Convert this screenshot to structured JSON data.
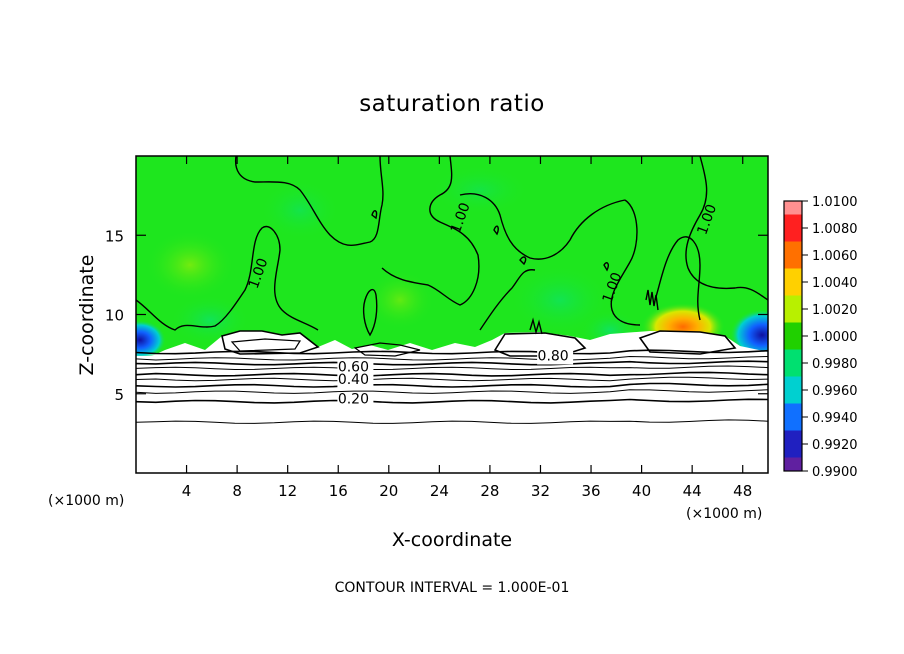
{
  "chart_data": {
    "type": "heatmap",
    "title": "saturation ratio",
    "xlabel": "X-coordinate",
    "ylabel": "Z-coordinate",
    "x_unit_label": "(×1000 m)",
    "x_unit_label_right": "(×1000 m)",
    "xlim": [
      0,
      50
    ],
    "ylim": [
      0,
      20
    ],
    "x_ticks": [
      4,
      8,
      12,
      16,
      20,
      24,
      28,
      32,
      36,
      40,
      44,
      48
    ],
    "y_ticks": [
      5,
      10,
      15
    ],
    "colorbar": {
      "labels": [
        "1.0100",
        "1.0080",
        "1.0060",
        "1.0040",
        "1.0020",
        "1.0000",
        "0.9980",
        "0.9960",
        "0.9940",
        "0.9920",
        "0.9900"
      ],
      "colors": [
        "#ff9090",
        "#ff2020",
        "#ff7000",
        "#ffd000",
        "#b8f000",
        "#20d000",
        "#00e070",
        "#00d0d0",
        "#1070ff",
        "#2020c0",
        "#6020a0"
      ]
    },
    "field": {
      "upper_value": 1.0,
      "upper_color": "#1ee61e",
      "local_maximum": {
        "x": 44,
        "z": 9.5,
        "value": 1.006
      },
      "local_minima": [
        {
          "x": 1,
          "z": 8.0,
          "value": 0.992
        },
        {
          "x": 49,
          "z": 8.5,
          "value": 0.992
        }
      ]
    },
    "contour_labels": [
      {
        "text": "1.00",
        "x": 10,
        "z": 12.5
      },
      {
        "text": "1.00",
        "x": 26,
        "z": 16.0
      },
      {
        "text": "1.00",
        "x": 38,
        "z": 11.6
      },
      {
        "text": "1.00",
        "x": 45.5,
        "z": 15.9
      },
      {
        "text": "0.80",
        "x": 33,
        "z": 7.1
      },
      {
        "text": "0.60",
        "x": 17.2,
        "z": 6.4
      },
      {
        "text": "0.40",
        "x": 17.2,
        "z": 5.6
      },
      {
        "text": "0.20",
        "x": 17.2,
        "z": 4.4
      }
    ],
    "contour_levels_lower": [
      7.6,
      7.2,
      6.9,
      6.6,
      6.2,
      5.9,
      5.5,
      5.1,
      4.5,
      3.2
    ],
    "footer": "CONTOUR INTERVAL =  1.000E-01"
  }
}
